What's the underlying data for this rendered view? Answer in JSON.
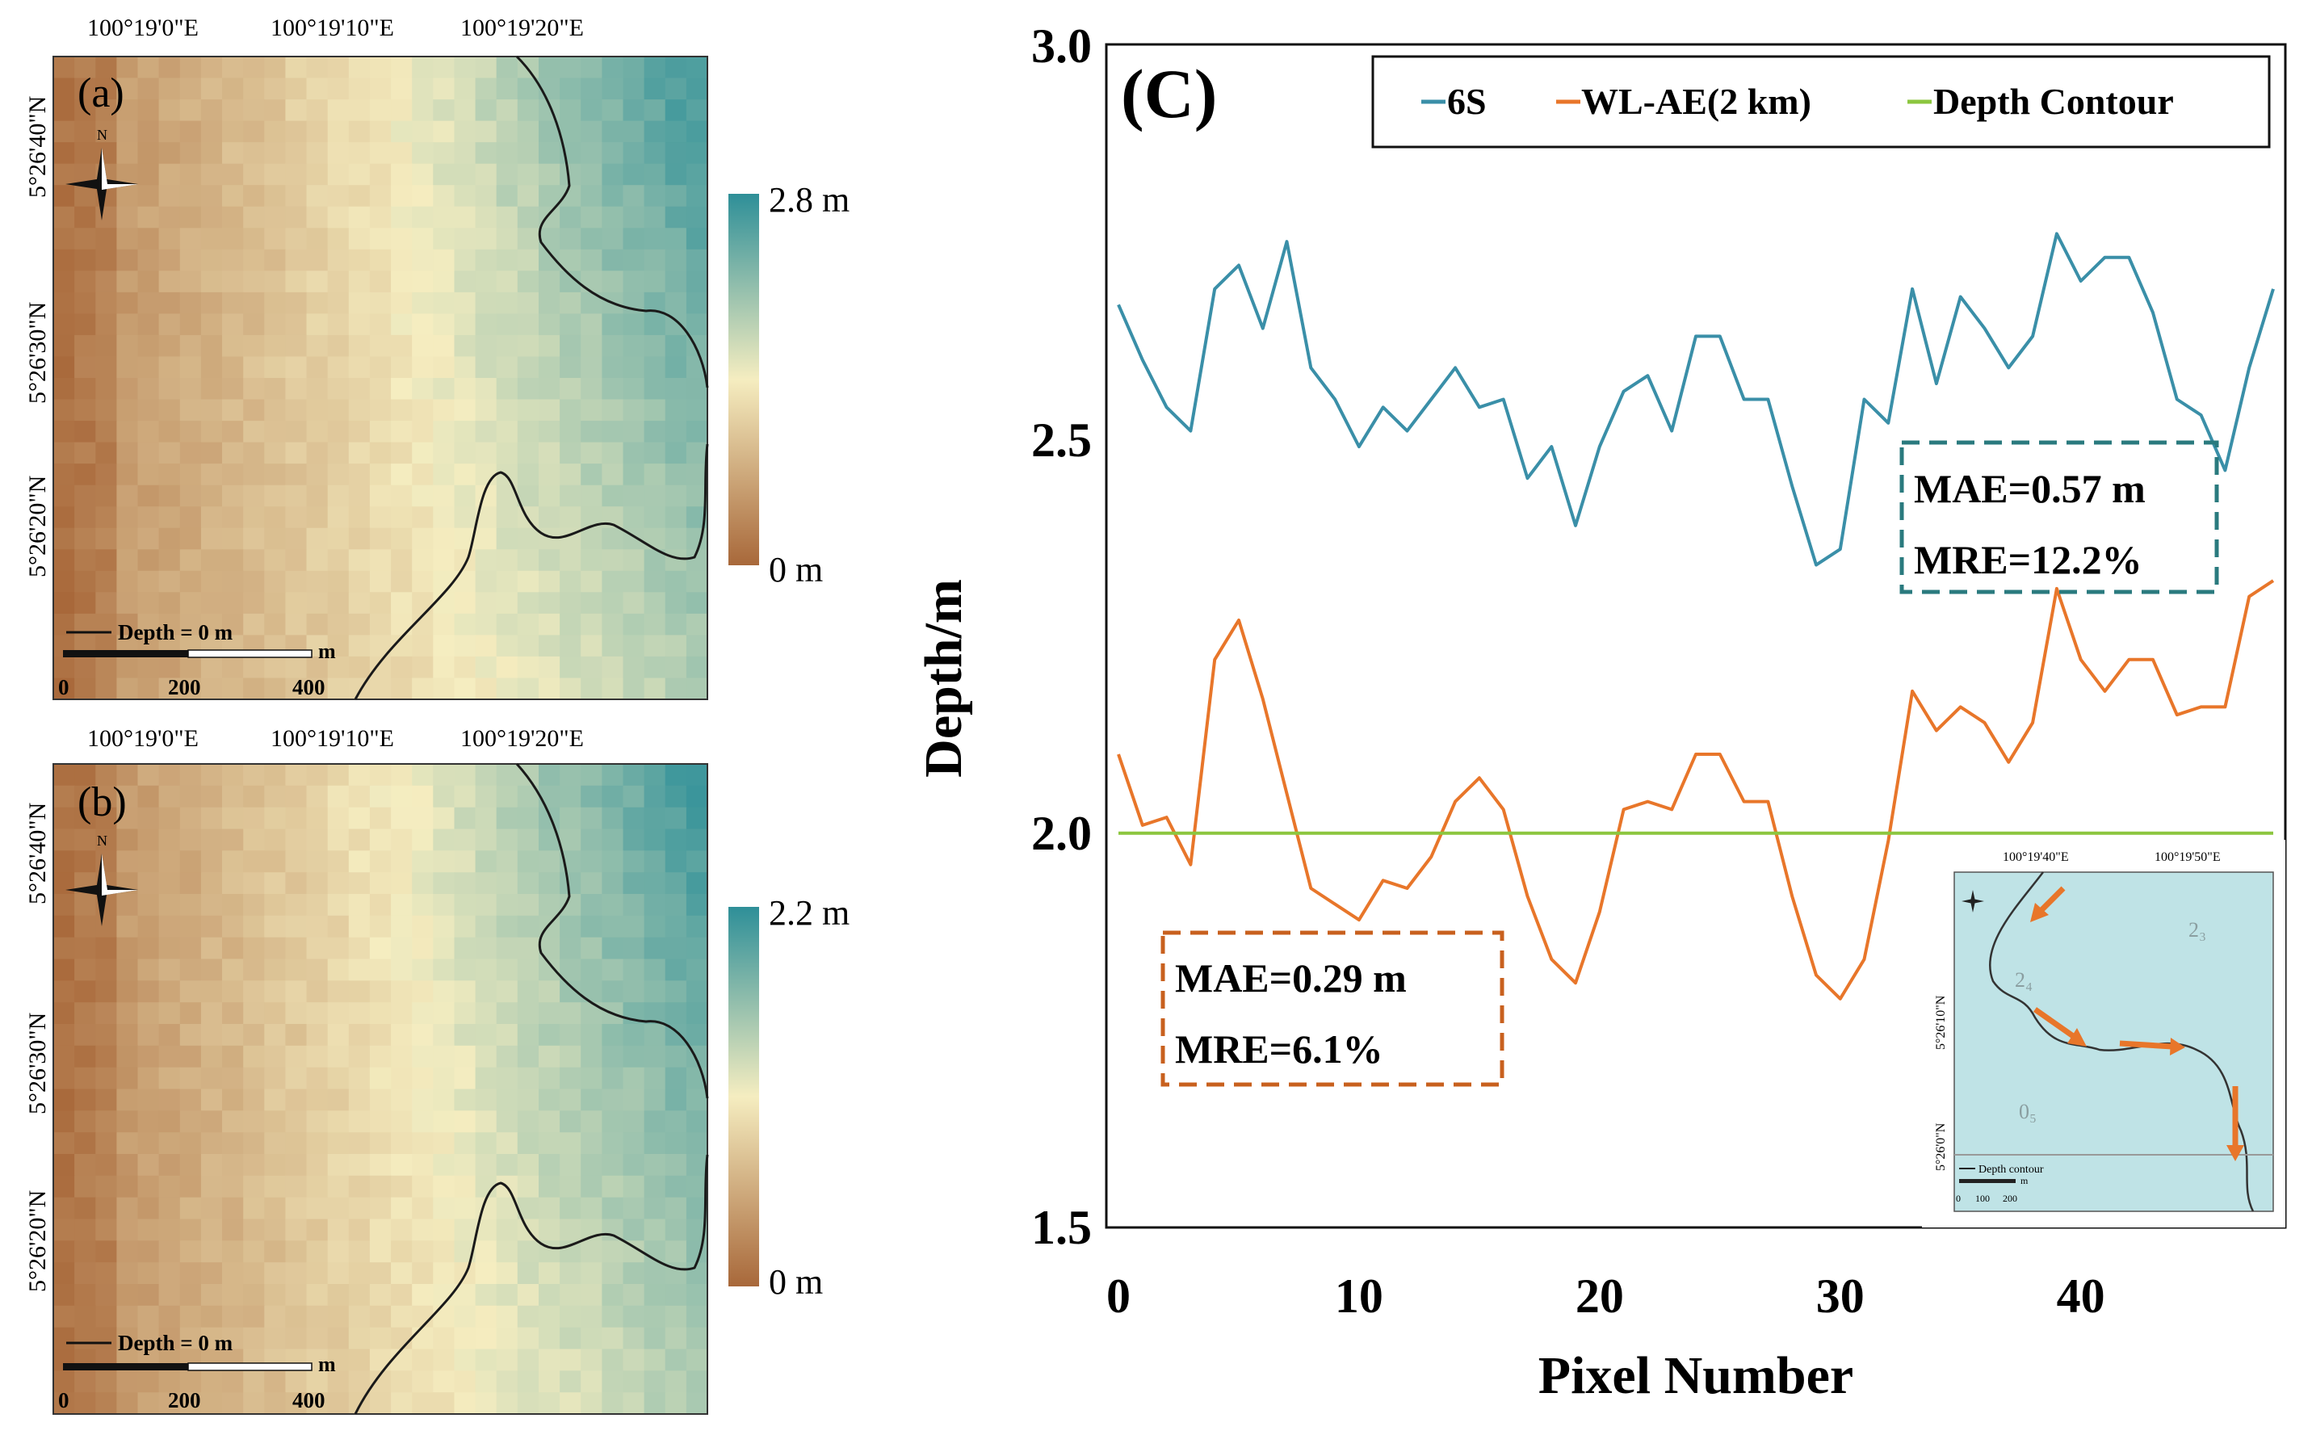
{
  "map_a": {
    "panel_label": "(a)",
    "lon_ticks": [
      "100°19'0\"E",
      "100°19'10\"E",
      "100°19'20\"E"
    ],
    "lat_ticks": [
      "5°26'40\"N",
      "5°26'30\"N",
      "5°26'20\"N"
    ],
    "colorbar_max": "2.8 m",
    "colorbar_min": "0 m",
    "legend_label": "Depth = 0 m",
    "scale_ticks": [
      "0",
      "200",
      "400"
    ],
    "scale_unit": "m",
    "north": "N"
  },
  "map_b": {
    "panel_label": "(b)",
    "lon_ticks": [
      "100°19'0\"E",
      "100°19'10\"E",
      "100°19'20\"E"
    ],
    "lat_ticks": [
      "5°26'40\"N",
      "5°26'30\"N",
      "5°26'20\"N"
    ],
    "colorbar_max": "2.2 m",
    "colorbar_min": "0 m",
    "legend_label": "Depth = 0 m",
    "scale_ticks": [
      "0",
      "200",
      "400"
    ],
    "scale_unit": "m",
    "north": "N"
  },
  "colors": {
    "brown": "#a8683a",
    "sand": "#f5edc0",
    "teal": "#2e8f98",
    "series_6s": "#3a8fa8",
    "series_wl": "#e8762a",
    "series_contour": "#8cc63f",
    "box_6s": "#2a7a7e",
    "box_wl": "#c8601e",
    "inset_water": "#bfe3e6"
  },
  "chart_data": {
    "type": "line",
    "panel_label": "(C)",
    "xlabel": "Pixel Number",
    "ylabel": "Depth/m",
    "xlim": [
      0,
      48
    ],
    "ylim": [
      1.5,
      3.0
    ],
    "x_ticks": [
      0,
      10,
      20,
      30,
      40
    ],
    "y_ticks": [
      "1.5",
      "2.0",
      "2.5",
      "3.0"
    ],
    "grid": false,
    "legend_position": "top-right",
    "series": [
      {
        "name": "6S",
        "color": "#3a8fa8",
        "x": [
          0,
          1,
          2,
          3,
          4,
          5,
          6,
          7,
          8,
          9,
          10,
          11,
          12,
          13,
          14,
          15,
          16,
          17,
          18,
          19,
          20,
          21,
          22,
          23,
          24,
          25,
          26,
          27,
          28,
          29,
          30,
          31,
          32,
          33,
          34,
          35,
          36,
          37,
          38,
          39,
          40,
          41,
          42,
          43,
          44,
          45,
          46,
          47,
          48
        ],
        "values": [
          2.67,
          2.6,
          2.54,
          2.51,
          2.69,
          2.72,
          2.64,
          2.75,
          2.59,
          2.55,
          2.49,
          2.54,
          2.51,
          2.55,
          2.59,
          2.54,
          2.55,
          2.45,
          2.49,
          2.39,
          2.49,
          2.56,
          2.58,
          2.51,
          2.63,
          2.63,
          2.55,
          2.55,
          2.44,
          2.34,
          2.36,
          2.55,
          2.52,
          2.69,
          2.57,
          2.68,
          2.64,
          2.59,
          2.63,
          2.76,
          2.7,
          2.73,
          2.73,
          2.66,
          2.55,
          2.53,
          2.46,
          2.59,
          2.69
        ]
      },
      {
        "name": "WL-AE(2 km)",
        "color": "#e8762a",
        "x": [
          0,
          1,
          2,
          3,
          4,
          5,
          6,
          7,
          8,
          9,
          10,
          11,
          12,
          13,
          14,
          15,
          16,
          17,
          18,
          19,
          20,
          21,
          22,
          23,
          24,
          25,
          26,
          27,
          28,
          29,
          30,
          31,
          32,
          33,
          34,
          35,
          36,
          37,
          38,
          39,
          40,
          41,
          42,
          43,
          44,
          45,
          46,
          47,
          48
        ],
        "values": [
          2.1,
          2.01,
          2.02,
          1.96,
          2.22,
          2.27,
          2.17,
          2.05,
          1.93,
          1.91,
          1.89,
          1.94,
          1.93,
          1.97,
          2.04,
          2.07,
          2.03,
          1.92,
          1.84,
          1.81,
          1.9,
          2.03,
          2.04,
          2.03,
          2.1,
          2.1,
          2.04,
          2.04,
          1.92,
          1.82,
          1.79,
          1.84,
          1.99,
          2.18,
          2.13,
          2.16,
          2.14,
          2.09,
          2.14,
          2.31,
          2.22,
          2.18,
          2.22,
          2.22,
          2.15,
          2.16,
          2.16,
          2.3,
          2.32
        ]
      },
      {
        "name": "Depth Contour",
        "color": "#8cc63f",
        "x": [
          0,
          48
        ],
        "values": [
          2.0,
          2.0
        ]
      }
    ],
    "annotations": {
      "box_6s": {
        "mae": "MAE=0.57 m",
        "mre": "MRE=12.2%"
      },
      "box_wl": {
        "mae": "MAE=0.29 m",
        "mre": "MRE=6.1%"
      }
    },
    "inset": {
      "lon_ticks": [
        "100°19'40\"E",
        "100°19'50\"E"
      ],
      "lat_ticks": [
        "5°26'10\"N",
        "5°26'0\"N"
      ],
      "legend_label": "Depth contour",
      "scale_ticks": [
        "0",
        "100",
        "200"
      ],
      "scale_unit": "m",
      "depth_labels": [
        "2₃",
        "2₄",
        "0₅"
      ]
    }
  }
}
